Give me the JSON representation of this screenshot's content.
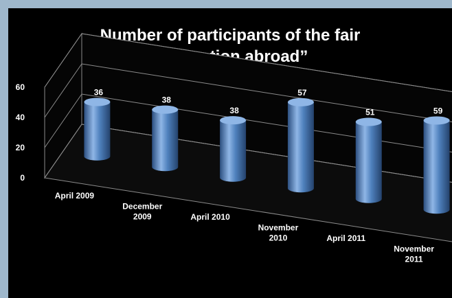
{
  "chart_data": {
    "type": "bar",
    "title_lines": [
      "Number of participants of the fair",
      "“Education abroad”"
    ],
    "categories": [
      [
        "April 2009"
      ],
      [
        "December",
        "2009"
      ],
      [
        "April 2010"
      ],
      [
        "November",
        "2010"
      ],
      [
        "April 2011"
      ],
      [
        "November",
        "2011"
      ]
    ],
    "values": [
      36,
      38,
      38,
      57,
      51,
      59
    ],
    "value_labels": [
      "36",
      "38",
      "38",
      "57",
      "51",
      "59"
    ],
    "y_ticks": [
      "0",
      "20",
      "40",
      "60"
    ],
    "ylim": [
      0,
      60
    ],
    "grid": true,
    "bar_shape": "cylinder",
    "perspective": "3d",
    "colors": {
      "bar": "#4f81bd",
      "bar_dark": "#2c4f80",
      "bar_light": "#8fb6e6",
      "background": "#000000",
      "frame": "#9fb8cc",
      "text": "#ffffff",
      "grid": "#8c8c8c"
    }
  }
}
